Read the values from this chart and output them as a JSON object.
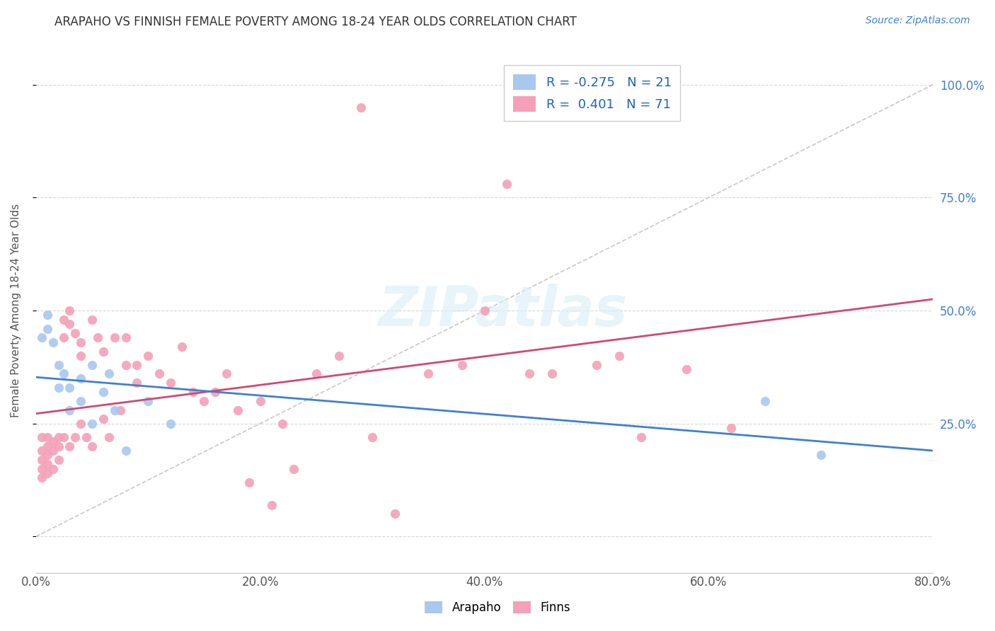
{
  "title": "ARAPAHO VS FINNISH FEMALE POVERTY AMONG 18-24 YEAR OLDS CORRELATION CHART",
  "source": "Source: ZipAtlas.com",
  "ylabel": "Female Poverty Among 18-24 Year Olds",
  "xlabel_ticks": [
    "0.0%",
    "20.0%",
    "40.0%",
    "60.0%",
    "80.0%"
  ],
  "xlabel_vals": [
    0.0,
    0.2,
    0.4,
    0.6,
    0.8
  ],
  "right_ytick_vals": [
    0.25,
    0.5,
    0.75,
    1.0
  ],
  "right_ytick_labels": [
    "25.0%",
    "50.0%",
    "75.0%",
    "100.0%"
  ],
  "arapaho_R": -0.275,
  "arapaho_N": 21,
  "finns_R": 0.401,
  "finns_N": 71,
  "arapaho_color": "#a8c8f0",
  "finns_color": "#f4a0b8",
  "arapaho_line_color": "#4080d0",
  "finns_line_color": "#d04878",
  "background_color": "#ffffff",
  "arapaho_x": [
    0.005,
    0.01,
    0.01,
    0.015,
    0.02,
    0.02,
    0.025,
    0.03,
    0.03,
    0.04,
    0.04,
    0.05,
    0.05,
    0.06,
    0.065,
    0.07,
    0.08,
    0.1,
    0.12,
    0.65,
    0.7
  ],
  "arapaho_y": [
    0.44,
    0.46,
    0.49,
    0.43,
    0.38,
    0.33,
    0.36,
    0.33,
    0.28,
    0.35,
    0.3,
    0.38,
    0.25,
    0.32,
    0.36,
    0.28,
    0.19,
    0.3,
    0.25,
    0.3,
    0.18
  ],
  "finns_x": [
    0.005,
    0.005,
    0.005,
    0.005,
    0.005,
    0.01,
    0.01,
    0.01,
    0.01,
    0.01,
    0.015,
    0.015,
    0.015,
    0.02,
    0.02,
    0.02,
    0.025,
    0.025,
    0.025,
    0.03,
    0.03,
    0.03,
    0.035,
    0.035,
    0.04,
    0.04,
    0.04,
    0.045,
    0.05,
    0.05,
    0.055,
    0.06,
    0.06,
    0.065,
    0.07,
    0.075,
    0.08,
    0.08,
    0.09,
    0.09,
    0.1,
    0.11,
    0.12,
    0.13,
    0.14,
    0.15,
    0.16,
    0.17,
    0.18,
    0.19,
    0.2,
    0.21,
    0.22,
    0.23,
    0.25,
    0.27,
    0.29,
    0.3,
    0.32,
    0.35,
    0.38,
    0.4,
    0.42,
    0.44,
    0.46,
    0.48,
    0.5,
    0.52,
    0.54,
    0.58,
    0.62
  ],
  "finns_y": [
    0.22,
    0.19,
    0.17,
    0.15,
    0.13,
    0.22,
    0.2,
    0.18,
    0.16,
    0.14,
    0.21,
    0.19,
    0.15,
    0.22,
    0.2,
    0.17,
    0.48,
    0.44,
    0.22,
    0.5,
    0.47,
    0.2,
    0.45,
    0.22,
    0.43,
    0.4,
    0.25,
    0.22,
    0.48,
    0.2,
    0.44,
    0.41,
    0.26,
    0.22,
    0.44,
    0.28,
    0.44,
    0.38,
    0.38,
    0.34,
    0.4,
    0.36,
    0.34,
    0.42,
    0.32,
    0.3,
    0.32,
    0.36,
    0.28,
    0.12,
    0.3,
    0.07,
    0.25,
    0.15,
    0.36,
    0.4,
    0.95,
    0.22,
    0.05,
    0.36,
    0.38,
    0.5,
    0.78,
    0.36,
    0.36,
    0.97,
    0.38,
    0.4,
    0.22,
    0.37,
    0.24
  ],
  "xlim": [
    0.0,
    0.8
  ],
  "ylim": [
    -0.08,
    1.08
  ]
}
